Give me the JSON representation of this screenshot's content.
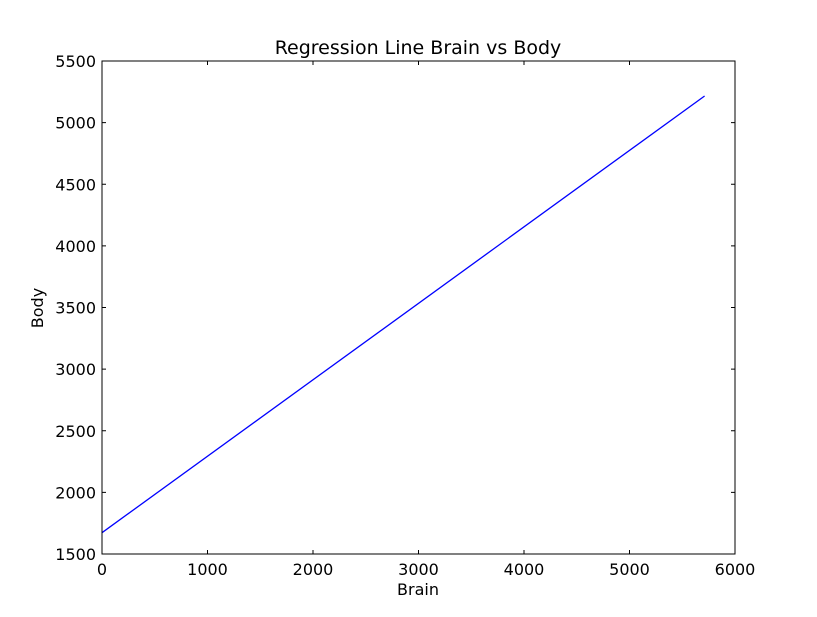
{
  "chart_data": {
    "type": "line",
    "title": "Regression Line Brain vs Body",
    "xlabel": "Brain",
    "ylabel": "Body",
    "xlim": [
      0,
      6000
    ],
    "ylim": [
      1500,
      5500
    ],
    "xticks": [
      0,
      1000,
      2000,
      3000,
      4000,
      5000,
      6000
    ],
    "yticks": [
      1500,
      2000,
      2500,
      3000,
      3500,
      4000,
      4500,
      5000,
      5500
    ],
    "grid": false,
    "series": [
      {
        "color": "#0000ff",
        "x": [
          0,
          5712
        ],
        "y": [
          1673,
          5216
        ]
      }
    ]
  }
}
